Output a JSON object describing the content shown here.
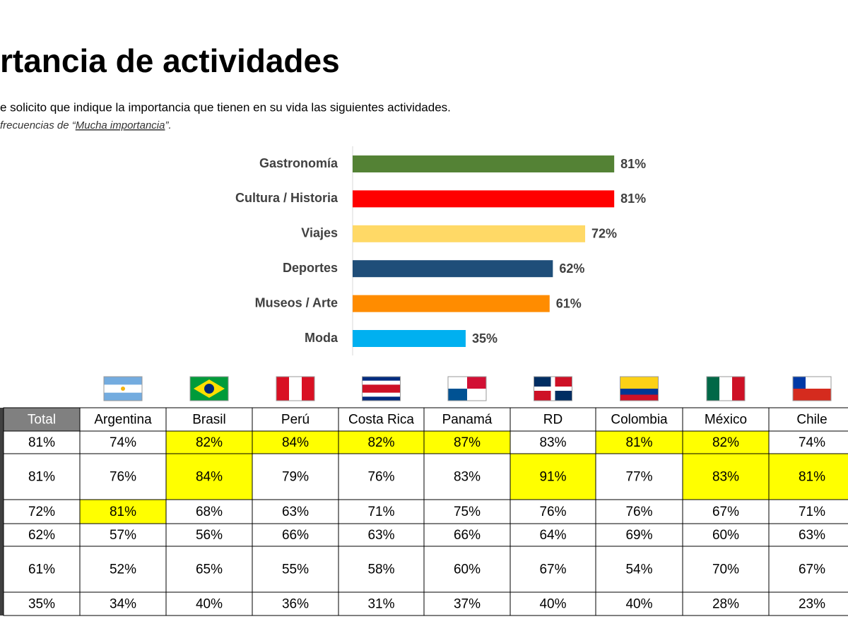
{
  "title": "rtancia de actividades",
  "subtitle": "e solicito que indique la importancia que tienen en su vida las siguientes actividades.",
  "note": {
    "prefix": "frecuencias de “",
    "emphasis": "Mucha importancia",
    "suffix": "”."
  },
  "chart_data": {
    "type": "hbar",
    "categories": [
      "Gastronomía",
      "Cultura / Historia",
      "Viajes",
      "Deportes",
      "Museos / Arte",
      "Moda"
    ],
    "values": [
      81,
      81,
      72,
      62,
      61,
      35
    ],
    "value_labels": [
      "81%",
      "81%",
      "72%",
      "62%",
      "61%",
      "35%"
    ],
    "colors": [
      "#548235",
      "#ff0000",
      "#ffd966",
      "#1f4e79",
      "#ff8c00",
      "#00b0f0"
    ]
  },
  "table": {
    "header": [
      "Total",
      "Argentina",
      "Brasil",
      "Perú",
      "Costa Rica",
      "Panamá",
      "RD",
      "Colombia",
      "México",
      "Chile"
    ],
    "rows": [
      [
        "81%",
        "74%",
        "82%",
        "84%",
        "82%",
        "87%",
        "83%",
        "81%",
        "82%",
        "74%"
      ],
      [
        "81%",
        "76%",
        "84%",
        "79%",
        "76%",
        "83%",
        "91%",
        "77%",
        "83%",
        "81%"
      ],
      [
        "72%",
        "81%",
        "68%",
        "63%",
        "71%",
        "75%",
        "76%",
        "76%",
        "67%",
        "71%"
      ],
      [
        "62%",
        "57%",
        "56%",
        "66%",
        "63%",
        "66%",
        "64%",
        "69%",
        "60%",
        "63%"
      ],
      [
        "61%",
        "52%",
        "65%",
        "55%",
        "58%",
        "60%",
        "67%",
        "54%",
        "70%",
        "67%"
      ],
      [
        "35%",
        "34%",
        "40%",
        "36%",
        "31%",
        "37%",
        "40%",
        "40%",
        "28%",
        "23%"
      ]
    ],
    "highlight_color": "#ffff00",
    "highlighted": [
      [
        0,
        2
      ],
      [
        0,
        3
      ],
      [
        0,
        4
      ],
      [
        0,
        5
      ],
      [
        0,
        7
      ],
      [
        0,
        8
      ],
      [
        1,
        2
      ],
      [
        1,
        6
      ],
      [
        1,
        8
      ],
      [
        1,
        9
      ],
      [
        2,
        1
      ]
    ]
  }
}
